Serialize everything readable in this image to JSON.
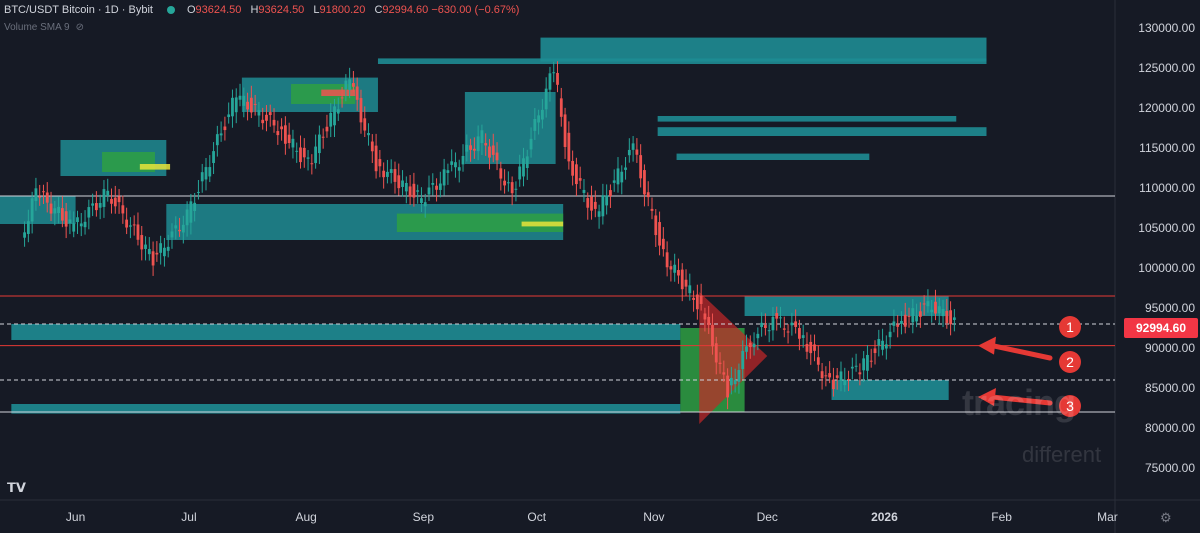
{
  "header": {
    "symbol": "BTC/USDT Bitcoin · 1D · Bybit",
    "open_label": "O",
    "open": "93624.50",
    "high_label": "H",
    "high": "93624.50",
    "low_label": "L",
    "low": "91800.20",
    "close_label": "C",
    "close": "92994.60",
    "change": "−630.00 (−0.67%)",
    "indicator": "Volume SMA 9"
  },
  "price_tag": "92994.60",
  "watermark": {
    "line1": "tracing",
    "line2": "different"
  },
  "annotations": [
    "1",
    "2",
    "3"
  ],
  "colors": {
    "background": "#161a25",
    "up": "#26a69a",
    "down": "#ef5350",
    "volume_profile": "#1e8c93",
    "poc_high": "#e8e43a",
    "poc_mid": "#2ea043",
    "red_line": "#e53935",
    "annotation": "#e53935"
  },
  "icons": {
    "hide": "eye-off-icon",
    "settings": "gear-icon",
    "logo": "tradingview-logo-icon"
  },
  "chart_data": {
    "type": "candlestick",
    "title": "BTC/USDT Bitcoin · 1D · Bybit",
    "x_ticks": [
      "Jun",
      "Jul",
      "Aug",
      "Sep",
      "Oct",
      "Nov",
      "Dec",
      "2026",
      "Feb",
      "Mar"
    ],
    "y_ticks": [
      75000,
      80000,
      85000,
      90000,
      95000,
      100000,
      105000,
      110000,
      115000,
      120000,
      125000,
      130000
    ],
    "y_tick_labels": [
      "75000.00",
      "80000.00",
      "85000.00",
      "90000.00",
      "95000.00",
      "100000.00",
      "105000.00",
      "110000.00",
      "115000.00",
      "120000.00",
      "125000.00",
      "130000.00"
    ],
    "ylim": [
      71000,
      133500
    ],
    "last_price": 92994.6,
    "close_series": [
      {
        "date": "2025-05-18",
        "close": 103500
      },
      {
        "date": "2025-05-22",
        "close": 109500
      },
      {
        "date": "2025-06-01",
        "close": 105000
      },
      {
        "date": "2025-06-10",
        "close": 109500
      },
      {
        "date": "2025-06-22",
        "close": 101000
      },
      {
        "date": "2025-07-01",
        "close": 106500
      },
      {
        "date": "2025-07-10",
        "close": 117000
      },
      {
        "date": "2025-07-14",
        "close": 121500
      },
      {
        "date": "2025-07-25",
        "close": 117500
      },
      {
        "date": "2025-08-02",
        "close": 113000
      },
      {
        "date": "2025-08-13",
        "close": 123500
      },
      {
        "date": "2025-08-20",
        "close": 113000
      },
      {
        "date": "2025-09-01",
        "close": 108500
      },
      {
        "date": "2025-09-08",
        "close": 112000
      },
      {
        "date": "2025-09-17",
        "close": 116500
      },
      {
        "date": "2025-09-25",
        "close": 109000
      },
      {
        "date": "2025-10-06",
        "close": 125000
      },
      {
        "date": "2025-10-10",
        "close": 113000
      },
      {
        "date": "2025-10-17",
        "close": 106500
      },
      {
        "date": "2025-10-27",
        "close": 115000
      },
      {
        "date": "2025-11-04",
        "close": 101500
      },
      {
        "date": "2025-11-14",
        "close": 95000
      },
      {
        "date": "2025-11-21",
        "close": 84500
      },
      {
        "date": "2025-11-27",
        "close": 91000
      },
      {
        "date": "2025-12-03",
        "close": 93500
      },
      {
        "date": "2025-12-10",
        "close": 92000
      },
      {
        "date": "2025-12-18",
        "close": 85500
      },
      {
        "date": "2025-12-26",
        "close": 87500
      },
      {
        "date": "2026-01-05",
        "close": 93000
      },
      {
        "date": "2026-01-14",
        "close": 95500
      },
      {
        "date": "2026-01-20",
        "close": 92994.6
      }
    ],
    "horizontal_lines": [
      {
        "price": 109000,
        "style": "solid",
        "color": "#d1d4dc"
      },
      {
        "price": 96500,
        "style": "solid",
        "color": "#e53935"
      },
      {
        "price": 93000,
        "style": "dashed",
        "color": "#d1d4dc"
      },
      {
        "price": 90300,
        "style": "solid",
        "color": "#e53935"
      },
      {
        "price": 86000,
        "style": "dashed",
        "color": "#d1d4dc"
      },
      {
        "price": 82000,
        "style": "solid",
        "color": "#d1d4dc"
      }
    ],
    "volume_profile_zones": [
      {
        "start": "2025-10-02",
        "end": "2026-01-28",
        "low": 125800,
        "high": 128800
      },
      {
        "start": "2025-08-20",
        "end": "2026-01-28",
        "low": 125500,
        "high": 126200
      },
      {
        "start": "2025-11-02",
        "end": "2026-01-28",
        "low": 116500,
        "high": 117600
      },
      {
        "start": "2025-11-02",
        "end": "2026-01-20",
        "low": 118300,
        "high": 119000
      },
      {
        "start": "2025-11-07",
        "end": "2025-12-28",
        "low": 113500,
        "high": 114300
      },
      {
        "start": "2025-05-15",
        "end": "2025-11-08",
        "low": 91000,
        "high": 93000
      },
      {
        "start": "2025-05-15",
        "end": "2025-11-08",
        "low": 81800,
        "high": 83000
      },
      {
        "start": "2025-11-25",
        "end": "2026-01-18",
        "low": 94000,
        "high": 96500
      },
      {
        "start": "2025-12-18",
        "end": "2026-01-18",
        "low": 83500,
        "high": 86000
      }
    ],
    "annotations": [
      {
        "label": "1",
        "price": 93000
      },
      {
        "label": "2",
        "price": 90300
      },
      {
        "label": "3",
        "price": 84000
      }
    ]
  }
}
